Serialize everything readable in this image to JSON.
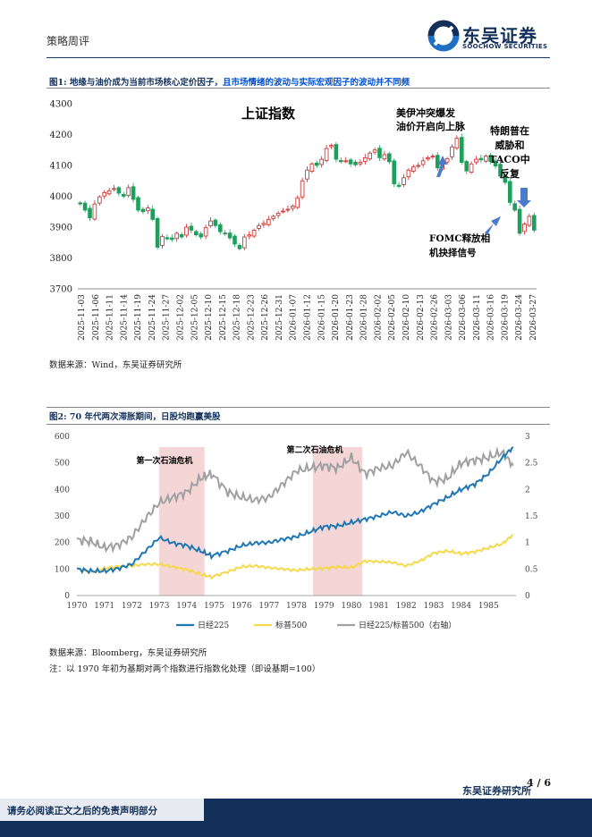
{
  "header": {
    "left_label": "策略周评",
    "brand_cn": "东吴证券",
    "brand_en": "SOOCHOW SECURITIES"
  },
  "figure1": {
    "title_main": "图1:  地缘与油价成为当前市场核心定价因子",
    "title_highlight": "，",
    "title_rest": "且市场情绪的波动与实际宏观因子的波动并不同频",
    "chart_title": "上证指数",
    "annotations": {
      "a1_line1": "美伊冲突爆发",
      "a1_line2": "油价开启向上脉",
      "a2_line1": "特朗普在",
      "a2_line2": "威胁和",
      "a2_line3": "TACO中",
      "a2_line4": "反复",
      "a3_line1": "FOMC释放相",
      "a3_line2": "机抉择信号"
    },
    "source": "数据来源：Wind，东吴证券研究所"
  },
  "figure2": {
    "title": "图2:  70 年代两次滞胀期间，日股均跑赢美股",
    "band1_label": "第一次石油危机",
    "band2_label": "第二次石油危机",
    "source": "数据来源：Bloomberg，东吴证券研究所",
    "note": "注：以 1970 年初为基期对两个指数进行指数化处理（即设基期=100）"
  },
  "footer": {
    "page": "4  /  6",
    "disclaimer": "请务必阅读正文之后的免责声明部分",
    "org": "东吴证券研究所"
  },
  "colors": {
    "up": "#cc2222",
    "down": "#1f9e5e",
    "nikkei": "#1f77b4",
    "sp500": "#f5d94a",
    "ratio": "#a0a0a0",
    "band": "#f4d6d6",
    "brand": "#12305a"
  },
  "chart_data": [
    {
      "type": "candlestick",
      "title": "上证指数",
      "ylim": [
        3700,
        4300
      ],
      "yticks": [
        3700,
        3800,
        3900,
        4000,
        4100,
        4200,
        4300
      ],
      "xtick_labels": [
        "2025-11-03",
        "2025-11-06",
        "2025-11-11",
        "2025-11-14",
        "2025-11-19",
        "2025-11-24",
        "2025-11-27",
        "2025-12-02",
        "2025-12-05",
        "2025-12-10",
        "2025-12-15",
        "2025-12-18",
        "2025-12-23",
        "2025-12-26",
        "2025-12-31",
        "2026-01-07",
        "2026-01-12",
        "2026-01-15",
        "2026-01-20",
        "2026-01-23",
        "2026-01-28",
        "2026-02-02",
        "2026-02-05",
        "2026-02-10",
        "2026-02-13",
        "2026-02-26",
        "2026-03-03",
        "2026-03-06",
        "2026-03-11",
        "2026-03-16",
        "2026-03-19",
        "2026-03-24",
        "2026-03-27"
      ],
      "closes": [
        3975,
        3955,
        3930,
        3975,
        3998,
        4012,
        4018,
        4025,
        4010,
        4000,
        4028,
        3990,
        3955,
        3950,
        3962,
        3925,
        3835,
        3870,
        3862,
        3860,
        3880,
        3868,
        3900,
        3890,
        3875,
        3868,
        3898,
        3920,
        3905,
        3885,
        3878,
        3865,
        3845,
        3830,
        3868,
        3875,
        3890,
        3905,
        3912,
        3925,
        3935,
        3945,
        3952,
        3958,
        3968,
        3995,
        4050,
        4085,
        4105,
        4100,
        4120,
        4155,
        4165,
        4120,
        4112,
        4115,
        4105,
        4102,
        4110,
        4125,
        4140,
        4150,
        4125,
        4135,
        4112,
        4040,
        4032,
        4060,
        4085,
        4095,
        4100,
        4115,
        4125,
        4130,
        4092,
        4108,
        4122,
        4160,
        4188,
        4110,
        4082,
        4105,
        4120,
        4118,
        4130,
        4112,
        4098,
        4065,
        4045,
        3980,
        3955,
        3880,
        3910,
        3935,
        3890
      ]
    },
    {
      "type": "line",
      "x_ticks": [
        "1970",
        "1971",
        "1972",
        "1973",
        "1974",
        "1975",
        "1976",
        "1977",
        "1978",
        "1979",
        "1980",
        "1981",
        "1982",
        "1983",
        "1984",
        "1985"
      ],
      "ylim_left": [
        0,
        600
      ],
      "yticks_left": [
        0,
        100,
        200,
        300,
        400,
        500,
        600
      ],
      "ylim_right": [
        0,
        3
      ],
      "yticks_right": [
        "0",
        "0.5",
        "1",
        "1.5",
        "2",
        "2.5",
        "3"
      ],
      "shaded_periods": [
        [
          1973.0,
          1974.65
        ],
        [
          1978.6,
          1980.4
        ]
      ],
      "series": [
        {
          "name": "日经225",
          "axis": "left",
          "x": [
            1970,
            1970.5,
            1971,
            1971.5,
            1972,
            1972.5,
            1973,
            1973.5,
            1974,
            1974.5,
            1974.9,
            1975.5,
            1976,
            1976.5,
            1977,
            1977.5,
            1978,
            1978.5,
            1979,
            1979.5,
            1980,
            1980.5,
            1981,
            1981.5,
            1982,
            1982.5,
            1983,
            1983.5,
            1984,
            1984.5,
            1985,
            1985.5,
            1985.9
          ],
          "values": [
            100,
            92,
            92,
            102,
            118,
            168,
            218,
            198,
            188,
            168,
            150,
            168,
            188,
            198,
            200,
            212,
            222,
            240,
            260,
            262,
            275,
            288,
            300,
            315,
            300,
            315,
            345,
            370,
            400,
            420,
            460,
            520,
            560
          ]
        },
        {
          "name": "标普500",
          "axis": "left",
          "x": [
            1970,
            1970.5,
            1971,
            1971.5,
            1972,
            1972.5,
            1973,
            1973.5,
            1974,
            1974.5,
            1974.9,
            1975.5,
            1976,
            1976.5,
            1977,
            1977.5,
            1978,
            1978.5,
            1979,
            1979.5,
            1980,
            1980.5,
            1981,
            1981.5,
            1982,
            1982.5,
            1983,
            1983.5,
            1984,
            1984.5,
            1985,
            1985.5,
            1985.9
          ],
          "values": [
            100,
            88,
            102,
            110,
            112,
            118,
            118,
            108,
            98,
            80,
            70,
            90,
            108,
            112,
            105,
            100,
            95,
            100,
            103,
            108,
            105,
            130,
            128,
            125,
            112,
            130,
            160,
            168,
            158,
            165,
            180,
            195,
            230
          ]
        },
        {
          "name": "日经225/标普500（右轴）",
          "axis": "right",
          "x": [
            1970,
            1970.5,
            1971,
            1971.5,
            1972,
            1972.5,
            1973,
            1973.5,
            1974,
            1974.5,
            1974.9,
            1975.5,
            1976,
            1976.5,
            1977,
            1977.5,
            1978,
            1978.5,
            1979,
            1979.5,
            1980,
            1980.5,
            1981,
            1981.5,
            1982,
            1982.5,
            1983,
            1983.5,
            1984,
            1984.5,
            1985,
            1985.5,
            1985.9
          ],
          "values": [
            1.05,
            1.02,
            0.9,
            0.95,
            1.1,
            1.45,
            1.75,
            1.85,
            1.95,
            2.2,
            2.3,
            1.95,
            1.85,
            1.8,
            1.85,
            2.1,
            2.35,
            2.4,
            2.45,
            2.4,
            2.6,
            2.3,
            2.4,
            2.45,
            2.7,
            2.45,
            2.15,
            2.2,
            2.5,
            2.55,
            2.6,
            2.7,
            2.45
          ]
        }
      ]
    }
  ]
}
